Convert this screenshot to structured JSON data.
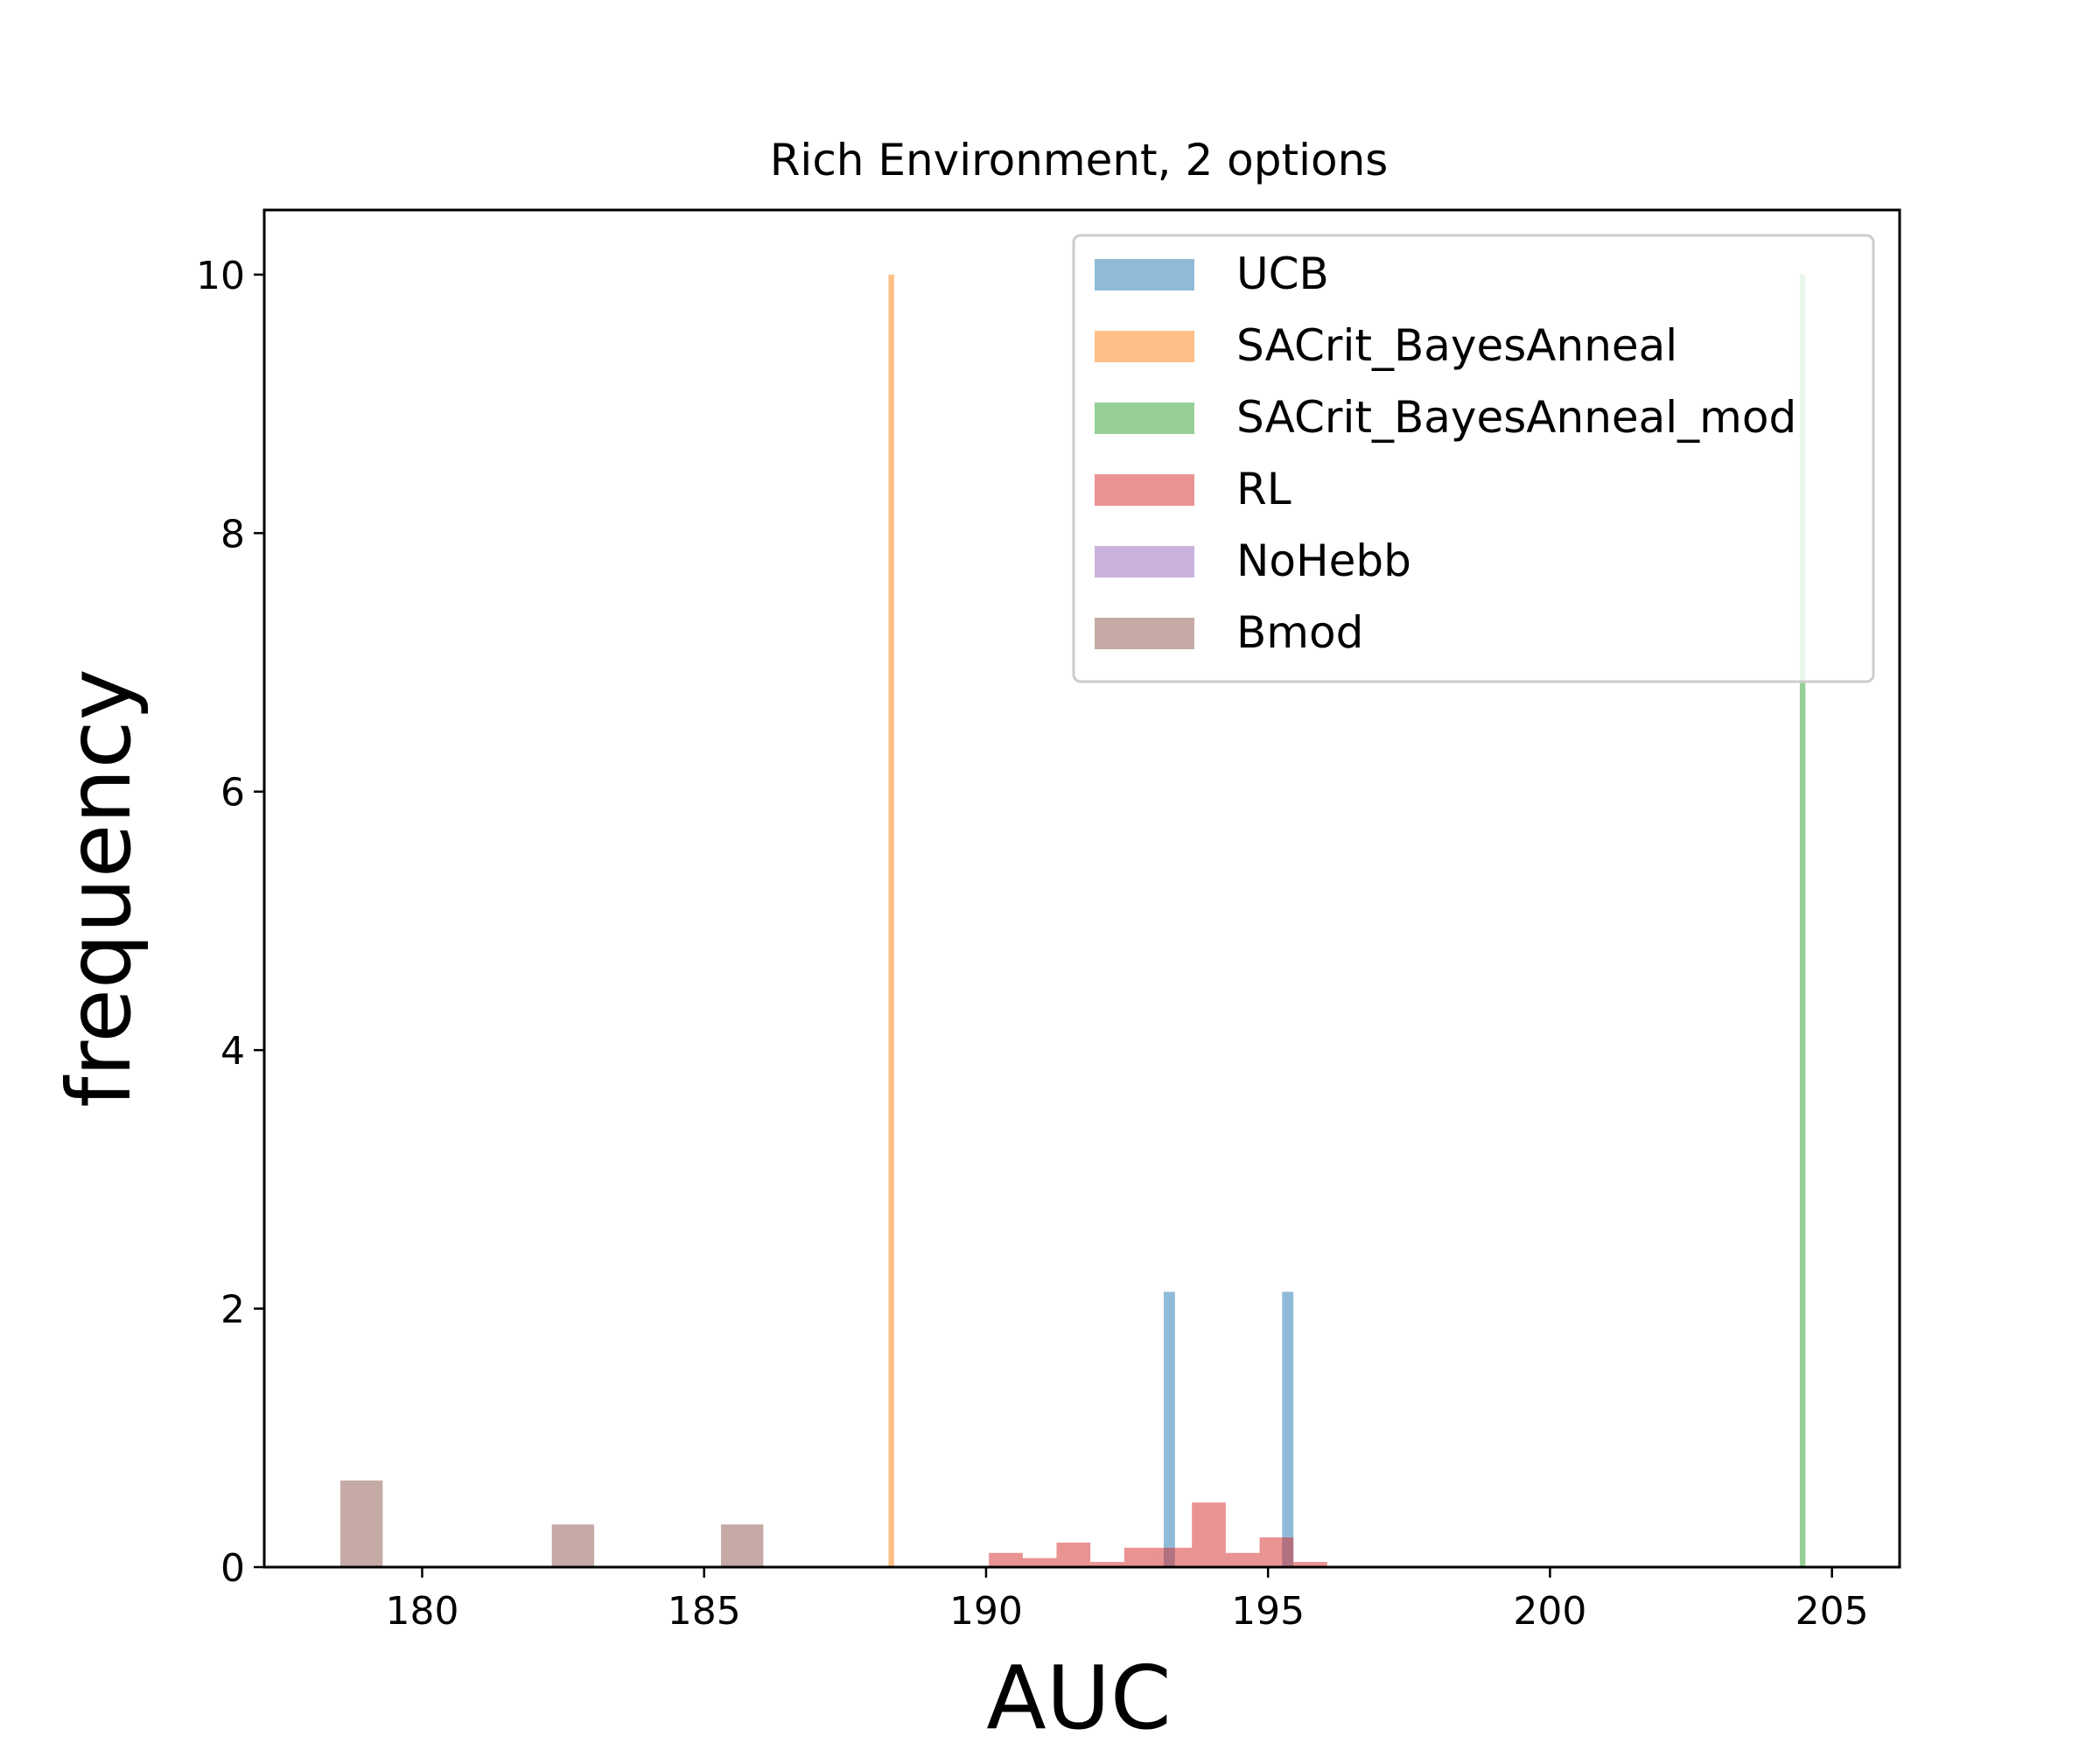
{
  "chart_data": {
    "type": "histogram",
    "title": "Rich Environment, 2 options",
    "xlabel": "AUC",
    "ylabel": "frequency",
    "xlim": [
      177.2,
      206.2
    ],
    "ylim": [
      0,
      10.5
    ],
    "xticks": [
      180,
      185,
      190,
      195,
      200,
      205
    ],
    "yticks": [
      0,
      2,
      4,
      6,
      8,
      10
    ],
    "grid": false,
    "legend_position": "top-right",
    "series": [
      {
        "name": "UCB",
        "color": "#1f77b4",
        "bins": [
          {
            "x0": 193.15,
            "x1": 193.35,
            "y": 2.13
          },
          {
            "x0": 195.25,
            "x1": 195.45,
            "y": 2.13
          }
        ]
      },
      {
        "name": "SACrit_BayesAnneal",
        "color": "#ff7f0e",
        "bins": [
          {
            "x0": 188.27,
            "x1": 188.37,
            "y": 10
          }
        ]
      },
      {
        "name": "SACrit_BayesAnneal_mod",
        "color": "#2ca02c",
        "bins": [
          {
            "x0": 204.43,
            "x1": 204.53,
            "y": 10
          }
        ]
      },
      {
        "name": "RL",
        "color": "#d62728",
        "bins": [
          {
            "x0": 190.05,
            "x1": 190.65,
            "y": 0.11
          },
          {
            "x0": 190.65,
            "x1": 191.25,
            "y": 0.07
          },
          {
            "x0": 191.25,
            "x1": 191.85,
            "y": 0.19
          },
          {
            "x0": 191.85,
            "x1": 192.45,
            "y": 0.04
          },
          {
            "x0": 192.45,
            "x1": 193.05,
            "y": 0.15
          },
          {
            "x0": 193.05,
            "x1": 193.65,
            "y": 0.15
          },
          {
            "x0": 193.65,
            "x1": 194.25,
            "y": 0.5
          },
          {
            "x0": 194.25,
            "x1": 194.85,
            "y": 0.11
          },
          {
            "x0": 194.85,
            "x1": 195.45,
            "y": 0.23
          },
          {
            "x0": 195.45,
            "x1": 196.05,
            "y": 0.04
          }
        ]
      },
      {
        "name": "NoHebb",
        "color": "#9467bd",
        "bins": []
      },
      {
        "name": "Bmod",
        "color": "#8c564b",
        "bins": [
          {
            "x0": 178.55,
            "x1": 179.3,
            "y": 0.67
          },
          {
            "x0": 182.3,
            "x1": 183.05,
            "y": 0.33
          },
          {
            "x0": 185.3,
            "x1": 186.05,
            "y": 0.33
          }
        ]
      }
    ]
  }
}
